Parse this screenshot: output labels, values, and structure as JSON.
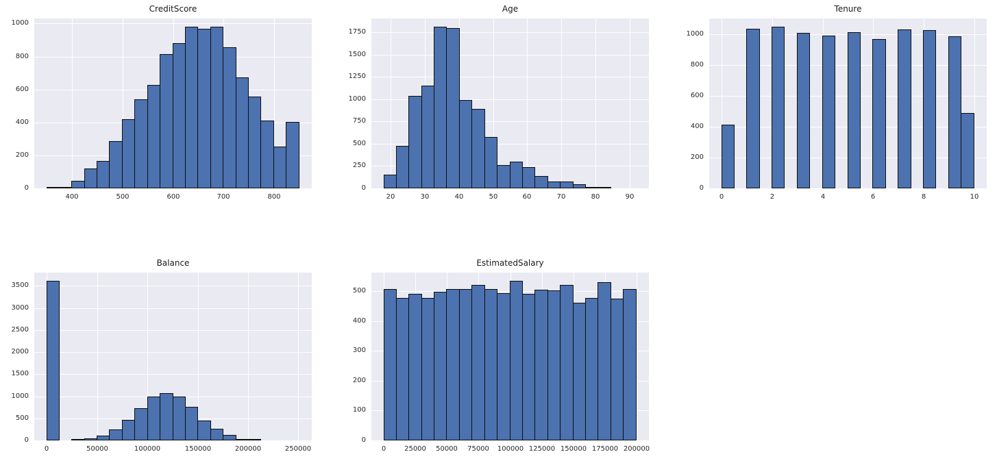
{
  "figure": {
    "background": "#ffffff",
    "plot_background": "#eaeaf2",
    "grid_color": "#ffffff",
    "bar_fill": "#4c72b0",
    "bar_edge": "#0d0d0d",
    "tick_color": "#262626",
    "title_color": "#1a1a1a"
  },
  "chart_data": [
    {
      "type": "bar",
      "subtype": "histogram",
      "title": "CreditScore",
      "row": 0,
      "col": 0,
      "bin_start": 350,
      "bin_width": 25,
      "values": [
        10,
        5,
        45,
        120,
        165,
        285,
        420,
        540,
        628,
        815,
        880,
        982,
        970,
        982,
        855,
        675,
        555,
        410,
        253,
        405
      ],
      "xlim": [
        325,
        875
      ],
      "ylim": [
        0,
        1031
      ],
      "xticks": [
        400,
        500,
        600,
        700,
        800
      ],
      "yticks": [
        0,
        200,
        400,
        600,
        800,
        1000
      ],
      "grid": true,
      "legend": false
    },
    {
      "type": "bar",
      "subtype": "histogram",
      "title": "Age",
      "row": 0,
      "col": 1,
      "bin_start": 18,
      "bin_width": 3.7,
      "values": [
        150,
        475,
        1035,
        1150,
        1815,
        1800,
        995,
        895,
        575,
        260,
        300,
        235,
        140,
        80,
        80,
        48,
        12,
        8,
        0,
        0
      ],
      "xlim": [
        14.3,
        95.7
      ],
      "ylim": [
        0,
        1906
      ],
      "xticks": [
        20,
        30,
        40,
        50,
        60,
        70,
        80,
        90
      ],
      "yticks": [
        0,
        250,
        500,
        750,
        1000,
        1250,
        1500,
        1750
      ],
      "grid": true,
      "legend": false
    },
    {
      "type": "bar",
      "subtype": "histogram",
      "title": "Tenure",
      "row": 0,
      "col": 2,
      "bin_start": 0,
      "bin_width": 0.5,
      "values": [
        413,
        0,
        1035,
        0,
        1048,
        0,
        1009,
        0,
        989,
        0,
        1012,
        0,
        967,
        0,
        1028,
        0,
        1025,
        0,
        984,
        490
      ],
      "xlim": [
        -0.5,
        10.5
      ],
      "ylim": [
        0,
        1100
      ],
      "xticks": [
        0,
        2,
        4,
        6,
        8,
        10
      ],
      "yticks": [
        0,
        200,
        400,
        600,
        800,
        1000
      ],
      "grid": true,
      "legend": false
    },
    {
      "type": "bar",
      "subtype": "histogram",
      "title": "Balance",
      "row": 1,
      "col": 0,
      "bin_start": 0,
      "bin_width": 12545,
      "values": [
        3620,
        0,
        15,
        50,
        110,
        245,
        465,
        730,
        1000,
        1070,
        1000,
        760,
        450,
        270,
        125,
        35,
        20,
        0,
        0,
        0
      ],
      "xlim": [
        -12545,
        263443
      ],
      "ylim": [
        0,
        3801
      ],
      "xticks": [
        0,
        50000,
        100000,
        150000,
        200000,
        250000
      ],
      "yticks": [
        0,
        500,
        1000,
        1500,
        2000,
        2500,
        3000,
        3500
      ],
      "grid": true,
      "legend": false
    },
    {
      "type": "bar",
      "subtype": "histogram",
      "title": "EstimatedSalary",
      "row": 1,
      "col": 1,
      "bin_start": 0,
      "bin_width": 10000,
      "values": [
        508,
        477,
        491,
        477,
        497,
        508,
        506,
        520,
        508,
        493,
        535,
        491,
        504,
        502,
        520,
        462,
        477,
        531,
        475,
        508
      ],
      "xlim": [
        -10000,
        210000
      ],
      "ylim": [
        0,
        562
      ],
      "xticks": [
        0,
        25000,
        50000,
        75000,
        100000,
        125000,
        150000,
        175000,
        200000
      ],
      "yticks": [
        0,
        100,
        200,
        300,
        400,
        500
      ],
      "grid": true,
      "legend": false
    }
  ]
}
